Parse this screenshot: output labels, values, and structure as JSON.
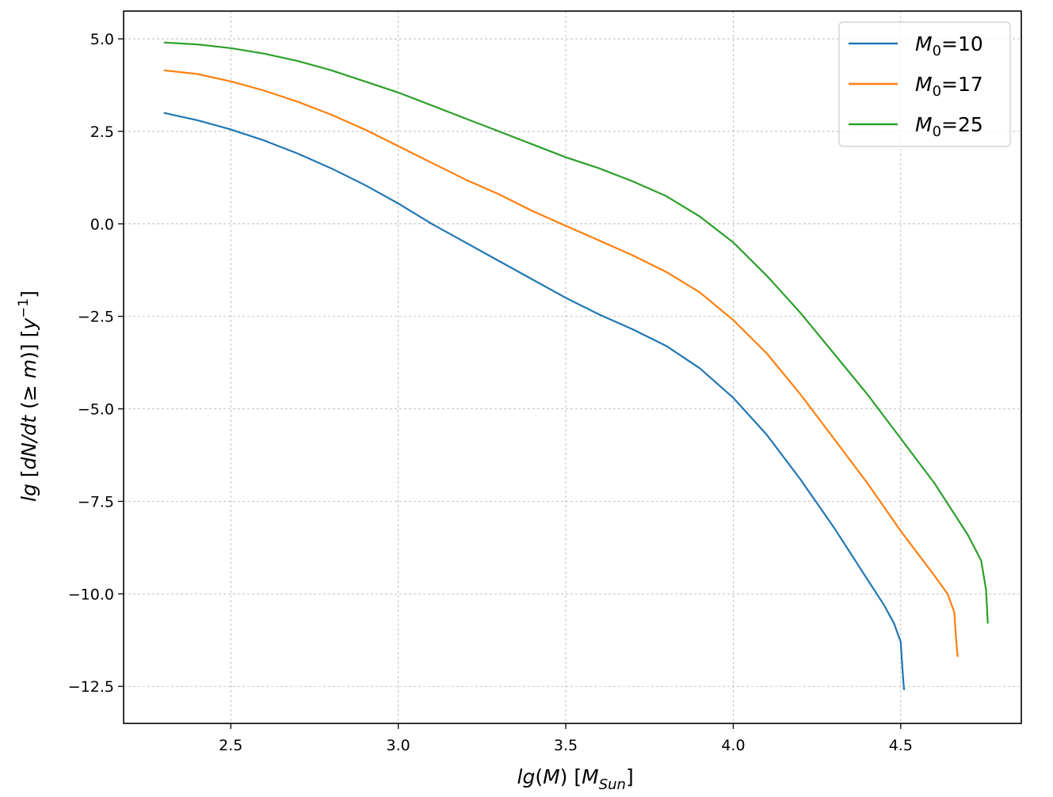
{
  "chart_data": {
    "type": "line",
    "xlabel": "lg(M)  [M_Sun]",
    "ylabel": "lg [dN/dt (≥ m)]  [y^-1]",
    "xlim": [
      2.18,
      4.86
    ],
    "ylim": [
      -13.5,
      5.75
    ],
    "xticks": [
      2.5,
      3.0,
      3.5,
      4.0,
      4.5
    ],
    "xtick_labels": [
      "2.5",
      "3.0",
      "3.5",
      "4.0",
      "4.5"
    ],
    "yticks": [
      5.0,
      2.5,
      0.0,
      -2.5,
      -5.0,
      -7.5,
      -10.0,
      -12.5
    ],
    "ytick_labels": [
      "5.0",
      "2.5",
      "0.0",
      "−2.5",
      "−5.0",
      "−7.5",
      "−10.0",
      "−12.5"
    ],
    "grid": true,
    "legend_position": "top-right",
    "series": [
      {
        "name": "M0=10",
        "legend_base": "M",
        "legend_sub": "0",
        "legend_value": "=10",
        "color": "#1f77b4",
        "x": [
          2.3,
          2.4,
          2.5,
          2.6,
          2.7,
          2.8,
          2.9,
          3.0,
          3.1,
          3.2,
          3.3,
          3.4,
          3.5,
          3.6,
          3.7,
          3.8,
          3.9,
          4.0,
          4.1,
          4.2,
          4.3,
          4.4,
          4.45,
          4.48,
          4.5,
          4.505,
          4.51
        ],
        "y": [
          3.0,
          2.8,
          2.55,
          2.25,
          1.9,
          1.5,
          1.05,
          0.55,
          0.0,
          -0.5,
          -1.0,
          -1.5,
          -2.0,
          -2.45,
          -2.85,
          -3.3,
          -3.9,
          -4.7,
          -5.7,
          -6.9,
          -8.2,
          -9.6,
          -10.3,
          -10.8,
          -11.3,
          -12.0,
          -12.6
        ]
      },
      {
        "name": "M0=17",
        "legend_base": "M",
        "legend_sub": "0",
        "legend_value": "=17",
        "color": "#ff7f0e",
        "x": [
          2.3,
          2.4,
          2.5,
          2.6,
          2.7,
          2.8,
          2.9,
          3.0,
          3.1,
          3.2,
          3.3,
          3.4,
          3.5,
          3.6,
          3.7,
          3.8,
          3.9,
          4.0,
          4.1,
          4.2,
          4.3,
          4.4,
          4.5,
          4.6,
          4.64,
          4.66,
          4.665,
          4.67
        ],
        "y": [
          4.15,
          4.05,
          3.85,
          3.6,
          3.3,
          2.95,
          2.55,
          2.1,
          1.65,
          1.2,
          0.8,
          0.35,
          -0.05,
          -0.45,
          -0.85,
          -1.3,
          -1.85,
          -2.6,
          -3.5,
          -4.6,
          -5.8,
          -7.0,
          -8.3,
          -9.5,
          -10.0,
          -10.5,
          -11.2,
          -11.7
        ]
      },
      {
        "name": "M0=25",
        "legend_base": "M",
        "legend_sub": "0",
        "legend_value": "=25",
        "color": "#2ca02c",
        "x": [
          2.3,
          2.4,
          2.5,
          2.6,
          2.7,
          2.8,
          2.9,
          3.0,
          3.1,
          3.2,
          3.3,
          3.4,
          3.5,
          3.6,
          3.7,
          3.8,
          3.9,
          4.0,
          4.1,
          4.2,
          4.3,
          4.4,
          4.5,
          4.6,
          4.7,
          4.74,
          4.755,
          4.76
        ],
        "y": [
          4.9,
          4.85,
          4.75,
          4.6,
          4.4,
          4.15,
          3.85,
          3.55,
          3.2,
          2.85,
          2.5,
          2.15,
          1.8,
          1.5,
          1.15,
          0.75,
          0.2,
          -0.5,
          -1.4,
          -2.4,
          -3.5,
          -4.6,
          -5.8,
          -7.0,
          -8.4,
          -9.1,
          -9.9,
          -10.8
        ]
      }
    ]
  }
}
